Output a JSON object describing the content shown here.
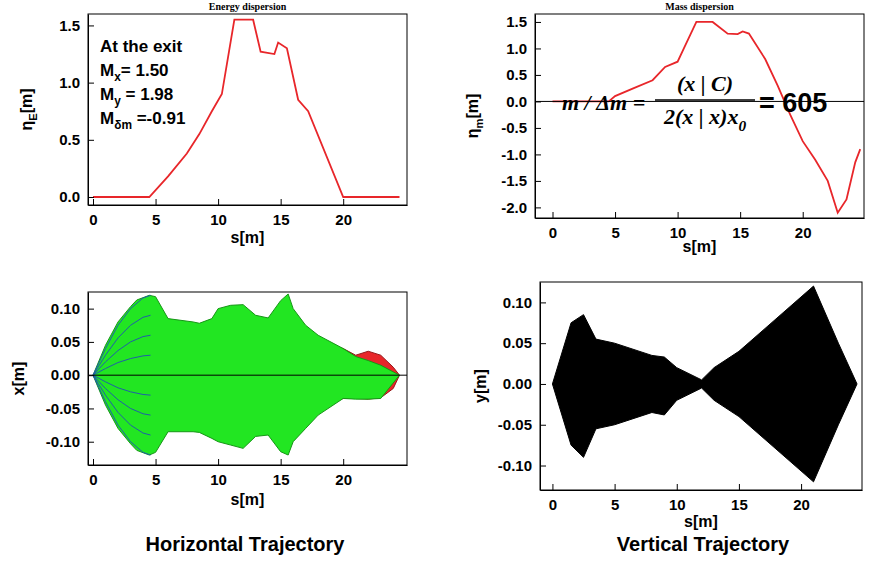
{
  "chart_data": [
    {
      "type": "line",
      "title": "Energy dispersion",
      "x_label": "s[m]",
      "y_label": {
        "text": "η",
        "sub": "E",
        "tail": "[m]"
      },
      "xlim": [
        -0.4,
        25.1
      ],
      "ylim": [
        -0.07,
        1.6
      ],
      "xticks": [
        0,
        5,
        10,
        15,
        20
      ],
      "yticks": [
        {
          "value": 0,
          "label": "0.0"
        },
        0.5,
        {
          "value": 1,
          "label": "1.0"
        },
        1.5
      ],
      "series": [
        {
          "color": "#e8262a",
          "x": [
            0,
            4.5,
            6,
            7.5,
            8.5,
            9.5,
            10.3,
            11.3,
            12.8,
            13.4,
            14.5,
            14.8,
            15.5,
            16.4,
            17.2,
            20,
            24.5
          ],
          "values": [
            0,
            0,
            0.18,
            0.38,
            0.55,
            0.75,
            0.9,
            1.55,
            1.55,
            1.27,
            1.25,
            1.35,
            1.3,
            0.85,
            0.75,
            0,
            0
          ]
        }
      ],
      "annotations": [
        {
          "text": "At the exit"
        },
        {
          "text": "M",
          "sub": "x",
          "tail": "= 1.50"
        },
        {
          "text": "M",
          "sub": "y",
          "tail": " = 1.98"
        },
        {
          "text": "M",
          "sub": "δm",
          "tail": " =-0.91"
        }
      ]
    },
    {
      "type": "line",
      "title": "Mass dispersion",
      "x_label": "s[m]",
      "y_label": {
        "text": "η",
        "sub": "m",
        "tail": "[m]"
      },
      "xlim": [
        -1.4,
        24.9
      ],
      "ylim": [
        -2.2,
        1.65
      ],
      "xticks": [
        0,
        5,
        10,
        15,
        20
      ],
      "yticks": [
        {
          "value": -2,
          "label": "-2.0"
        },
        -1.5,
        {
          "value": -1,
          "label": "-1.0"
        },
        -0.5,
        {
          "value": 0,
          "label": "0.0"
        },
        0.5,
        {
          "value": 1,
          "label": "1.0"
        },
        1.5
      ],
      "reference_line": 0,
      "series": [
        {
          "color": "#e8262a",
          "x": [
            0,
            4.5,
            5,
            6.5,
            8,
            9,
            10,
            10.5,
            11.5,
            12.8,
            14,
            14.8,
            15.2,
            15.7,
            17,
            18,
            19,
            20,
            21,
            22,
            22.8,
            23.5,
            24.2,
            24.6
          ],
          "values": [
            0,
            0,
            0.1,
            0.25,
            0.4,
            0.65,
            0.75,
            1.0,
            1.5,
            1.5,
            1.28,
            1.27,
            1.32,
            1.28,
            0.8,
            0.3,
            -0.25,
            -0.75,
            -1.1,
            -1.5,
            -2.1,
            -1.85,
            -1.15,
            -0.9
          ]
        }
      ],
      "formula": {
        "lhs": "m / Δm =",
        "numerator": "(x | C)",
        "denominator": {
          "text": "2(x | x)x",
          "sub": "0"
        },
        "result": "= 605"
      }
    },
    {
      "type": "area",
      "caption": "Horizontal Trajectory",
      "x_label": "s[m]",
      "y_label": "x[m]",
      "xlim": [
        -0.4,
        25.1
      ],
      "ylim": [
        -0.135,
        0.125
      ],
      "xticks": [
        0,
        5,
        10,
        15,
        20
      ],
      "yticks": [
        {
          "value": -0.1,
          "label": "-0.10"
        },
        -0.05,
        {
          "value": 0,
          "label": "0.00"
        },
        0.05,
        {
          "value": 0.1,
          "label": "0.10"
        }
      ],
      "reference_line": 0,
      "series": [
        {
          "type": "area",
          "color": "#e8262a",
          "x": [
            19,
            20,
            21,
            22,
            23,
            24,
            24.5
          ],
          "upper": [
            0.045,
            0.04,
            0.03,
            0.036,
            0.03,
            0.012,
            0
          ],
          "lower": [
            -0.04,
            -0.035,
            -0.035,
            -0.036,
            -0.034,
            -0.02,
            0
          ]
        },
        {
          "type": "area",
          "color": "#22e622",
          "x": [
            0,
            1,
            2,
            3,
            3.5,
            4.5,
            5,
            6,
            8,
            8.5,
            9.5,
            10,
            11,
            12,
            13,
            14,
            15,
            15.6,
            16,
            17,
            18,
            20,
            21,
            22,
            23,
            24.5
          ],
          "upper": [
            0,
            0.045,
            0.08,
            0.103,
            0.113,
            0.12,
            0.118,
            0.085,
            0.08,
            0.078,
            0.085,
            0.1,
            0.105,
            0.106,
            0.09,
            0.086,
            0.112,
            0.122,
            0.1,
            0.075,
            0.06,
            0.04,
            0.028,
            0.022,
            0.015,
            0
          ],
          "lower": [
            0,
            -0.045,
            -0.08,
            -0.103,
            -0.113,
            -0.12,
            -0.116,
            -0.085,
            -0.085,
            -0.086,
            -0.095,
            -0.1,
            -0.105,
            -0.11,
            -0.092,
            -0.09,
            -0.115,
            -0.12,
            -0.1,
            -0.08,
            -0.06,
            -0.035,
            -0.036,
            -0.036,
            -0.035,
            0
          ]
        },
        {
          "type": "line",
          "color": "#1f5fa8",
          "x": [
            0,
            1,
            2,
            3,
            4,
            4.6
          ],
          "values": [
            0,
            0.04,
            0.075,
            0.1,
            0.116,
            0.12
          ]
        },
        {
          "type": "line",
          "color": "#1f5fa8",
          "x": [
            0,
            1,
            2,
            3,
            4,
            4.6
          ],
          "values": [
            0,
            0.03,
            0.056,
            0.075,
            0.087,
            0.09
          ]
        },
        {
          "type": "line",
          "color": "#1f5fa8",
          "x": [
            0,
            1,
            2,
            3,
            4,
            4.6
          ],
          "values": [
            0,
            0.02,
            0.037,
            0.05,
            0.058,
            0.06
          ]
        },
        {
          "type": "line",
          "color": "#1f5fa8",
          "x": [
            0,
            1,
            2,
            3,
            4,
            4.6
          ],
          "values": [
            0,
            0.01,
            0.019,
            0.025,
            0.029,
            0.03
          ]
        },
        {
          "type": "line",
          "color": "#1f5fa8",
          "x": [
            0,
            1,
            2,
            3,
            4,
            4.6
          ],
          "values": [
            0,
            -0.01,
            -0.019,
            -0.025,
            -0.029,
            -0.03
          ]
        },
        {
          "type": "line",
          "color": "#1f5fa8",
          "x": [
            0,
            1,
            2,
            3,
            4,
            4.6
          ],
          "values": [
            0,
            -0.02,
            -0.037,
            -0.05,
            -0.058,
            -0.06
          ]
        },
        {
          "type": "line",
          "color": "#1f5fa8",
          "x": [
            0,
            1,
            2,
            3,
            4,
            4.6
          ],
          "values": [
            0,
            -0.03,
            -0.056,
            -0.075,
            -0.087,
            -0.09
          ]
        },
        {
          "type": "line",
          "color": "#1f5fa8",
          "x": [
            0,
            1,
            2,
            3,
            4,
            4.6
          ],
          "values": [
            0,
            -0.04,
            -0.075,
            -0.1,
            -0.116,
            -0.12
          ]
        }
      ]
    },
    {
      "type": "area",
      "caption": "Vertical Trajectory",
      "x_label": "s[m]",
      "y_label": "y[m]",
      "xlim": [
        -1.0,
        24.9
      ],
      "ylim": [
        -0.13,
        0.125
      ],
      "xticks": [
        0,
        5,
        10,
        15,
        20
      ],
      "yticks": [
        {
          "value": -0.1,
          "label": "-0.10"
        },
        -0.05,
        {
          "value": 0,
          "label": "0.00"
        },
        0.05,
        {
          "value": 0.1,
          "label": "0.10"
        }
      ],
      "series": [
        {
          "type": "area",
          "color": "#000000",
          "x": [
            0,
            1.5,
            2.5,
            3.5,
            5,
            8,
            9,
            10,
            12,
            13,
            15,
            21,
            23,
            24.5
          ],
          "upper": [
            0,
            0.075,
            0.085,
            0.055,
            0.05,
            0.035,
            0.033,
            0.02,
            0.005,
            0.02,
            0.04,
            0.12,
            0.05,
            0
          ],
          "lower": [
            0,
            -0.075,
            -0.09,
            -0.055,
            -0.05,
            -0.035,
            -0.038,
            -0.02,
            -0.005,
            -0.02,
            -0.04,
            -0.12,
            -0.05,
            0
          ]
        }
      ]
    }
  ]
}
